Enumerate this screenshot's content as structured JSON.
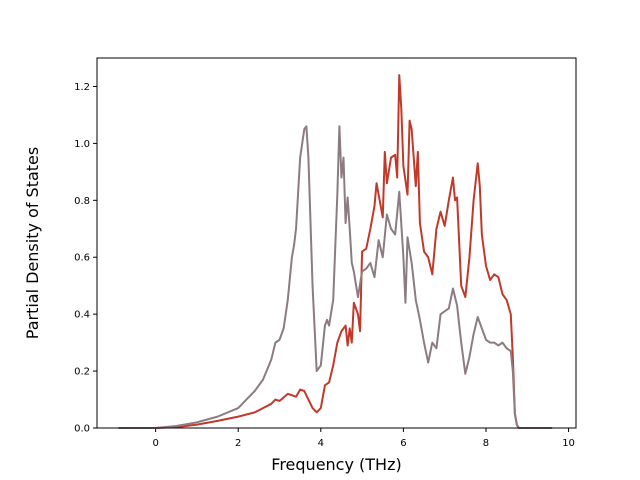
{
  "chart_data": {
    "type": "line",
    "xlabel": "Frequency (THz)",
    "ylabel": "Partial Density of States",
    "xlim": [
      -1.42,
      10.18
    ],
    "ylim": [
      0.0,
      1.3
    ],
    "xticks": [
      0,
      2,
      4,
      6,
      8,
      10
    ],
    "xtick_labels": [
      "0",
      "2",
      "4",
      "6",
      "8",
      "10"
    ],
    "yticks": [
      0.0,
      0.2,
      0.4,
      0.6,
      0.8,
      1.0,
      1.2
    ],
    "ytick_labels": [
      "0.0",
      "0.2",
      "0.4",
      "0.6",
      "0.8",
      "1.0",
      "1.2"
    ],
    "grid": false,
    "series": [
      {
        "color": "#c0392b",
        "x": [
          -0.9,
          0.0,
          0.5,
          1.0,
          1.5,
          2.0,
          2.4,
          2.6,
          2.8,
          2.9,
          3.0,
          3.2,
          3.4,
          3.5,
          3.6,
          3.7,
          3.8,
          3.9,
          4.0,
          4.1,
          4.2,
          4.3,
          4.4,
          4.5,
          4.6,
          4.65,
          4.7,
          4.75,
          4.8,
          4.9,
          4.95,
          5.0,
          5.1,
          5.2,
          5.3,
          5.35,
          5.4,
          5.5,
          5.55,
          5.6,
          5.7,
          5.8,
          5.85,
          5.9,
          5.95,
          6.0,
          6.1,
          6.15,
          6.2,
          6.3,
          6.35,
          6.4,
          6.5,
          6.6,
          6.7,
          6.8,
          6.9,
          7.0,
          7.1,
          7.2,
          7.25,
          7.3,
          7.4,
          7.5,
          7.6,
          7.7,
          7.8,
          7.85,
          7.9,
          8.0,
          8.1,
          8.2,
          8.3,
          8.4,
          8.5,
          8.6,
          8.65,
          8.7,
          8.75,
          8.8,
          9.0,
          9.6
        ],
        "y": [
          0.0,
          0.0,
          0.003,
          0.012,
          0.025,
          0.04,
          0.055,
          0.07,
          0.085,
          0.1,
          0.095,
          0.12,
          0.11,
          0.135,
          0.13,
          0.1,
          0.07,
          0.055,
          0.07,
          0.15,
          0.16,
          0.22,
          0.3,
          0.34,
          0.36,
          0.29,
          0.35,
          0.3,
          0.44,
          0.4,
          0.34,
          0.62,
          0.63,
          0.7,
          0.78,
          0.86,
          0.82,
          0.74,
          0.97,
          0.86,
          0.95,
          0.96,
          0.88,
          1.24,
          1.12,
          0.92,
          0.82,
          1.08,
          1.05,
          0.85,
          0.97,
          0.72,
          0.62,
          0.6,
          0.54,
          0.7,
          0.76,
          0.71,
          0.8,
          0.88,
          0.8,
          0.81,
          0.5,
          0.46,
          0.6,
          0.8,
          0.93,
          0.85,
          0.68,
          0.57,
          0.52,
          0.54,
          0.53,
          0.47,
          0.45,
          0.4,
          0.25,
          0.05,
          0.01,
          0.0,
          0.0,
          0.0
        ]
      },
      {
        "color": "#8c7c82",
        "x": [
          -0.9,
          0.0,
          0.5,
          1.0,
          1.5,
          2.0,
          2.4,
          2.6,
          2.8,
          2.9,
          3.0,
          3.1,
          3.2,
          3.3,
          3.35,
          3.4,
          3.5,
          3.6,
          3.65,
          3.7,
          3.8,
          3.9,
          4.0,
          4.1,
          4.15,
          4.2,
          4.3,
          4.4,
          4.45,
          4.5,
          4.55,
          4.6,
          4.65,
          4.7,
          4.75,
          4.8,
          4.9,
          5.0,
          5.1,
          5.2,
          5.3,
          5.4,
          5.5,
          5.6,
          5.7,
          5.8,
          5.9,
          6.0,
          6.05,
          6.1,
          6.2,
          6.3,
          6.4,
          6.5,
          6.6,
          6.7,
          6.8,
          6.9,
          7.0,
          7.1,
          7.2,
          7.3,
          7.4,
          7.5,
          7.6,
          7.7,
          7.8,
          7.9,
          8.0,
          8.1,
          8.2,
          8.3,
          8.4,
          8.5,
          8.6,
          8.65,
          8.7,
          8.75,
          8.8,
          9.0,
          9.6
        ],
        "y": [
          0.0,
          0.0,
          0.007,
          0.02,
          0.04,
          0.07,
          0.13,
          0.17,
          0.24,
          0.3,
          0.31,
          0.35,
          0.45,
          0.6,
          0.64,
          0.7,
          0.95,
          1.05,
          1.06,
          0.95,
          0.5,
          0.2,
          0.22,
          0.36,
          0.38,
          0.36,
          0.45,
          0.82,
          1.06,
          0.88,
          0.95,
          0.72,
          0.81,
          0.7,
          0.58,
          0.55,
          0.46,
          0.55,
          0.56,
          0.58,
          0.53,
          0.66,
          0.6,
          0.75,
          0.7,
          0.68,
          0.83,
          0.6,
          0.44,
          0.67,
          0.58,
          0.45,
          0.38,
          0.3,
          0.23,
          0.3,
          0.28,
          0.4,
          0.41,
          0.42,
          0.49,
          0.43,
          0.3,
          0.19,
          0.25,
          0.33,
          0.39,
          0.35,
          0.31,
          0.3,
          0.3,
          0.29,
          0.3,
          0.28,
          0.27,
          0.2,
          0.05,
          0.01,
          0.0,
          0.0,
          0.0
        ]
      }
    ]
  }
}
